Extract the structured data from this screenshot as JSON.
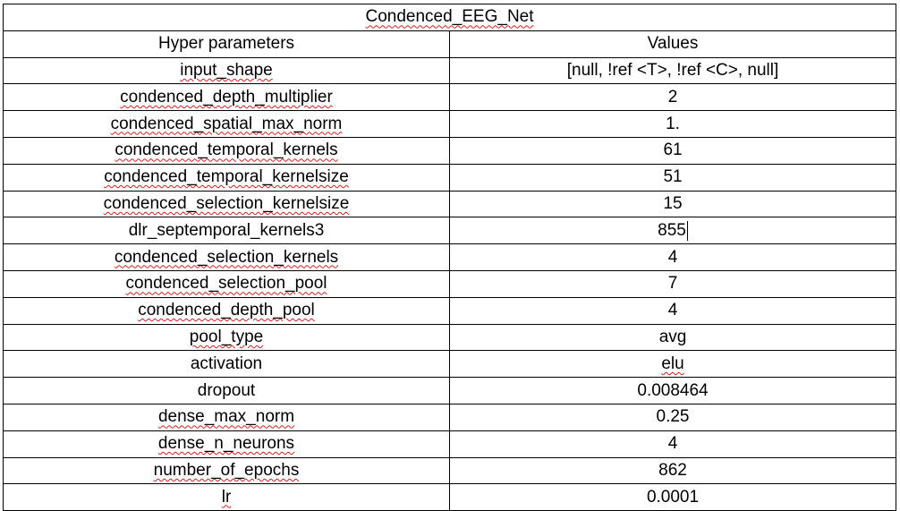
{
  "table": {
    "title": "Condenced_EEG_Net",
    "header": {
      "param": "Hyper parameters",
      "value": "Values"
    },
    "rows": [
      {
        "param": "input_shape",
        "value": "[null, !ref <T>, !ref <C>, null]"
      },
      {
        "param": "condenced_depth_multiplier",
        "value": "2"
      },
      {
        "param": "condenced_spatial_max_norm",
        "value": "1."
      },
      {
        "param": "condenced_temporal_kernels",
        "value": "61"
      },
      {
        "param": "condenced_temporal_kernelsize",
        "value": "51"
      },
      {
        "param": "condenced_selection_kernelsize",
        "value": "15"
      },
      {
        "param": "dlr_septemporal_kernels3",
        "value": "855"
      },
      {
        "param": "condenced_selection_kernels",
        "value": "4"
      },
      {
        "param": "condenced_selection_pool",
        "value": "7"
      },
      {
        "param": "condenced_depth_pool",
        "value": "4"
      },
      {
        "param": "pool_type",
        "value": "avg"
      },
      {
        "param": "activation",
        "value": "elu"
      },
      {
        "param": "dropout",
        "value": "0.008464"
      },
      {
        "param": "dense_max_norm",
        "value": "0.25"
      },
      {
        "param": "dense_n_neurons",
        "value": "4"
      },
      {
        "param": "number_of_epochs",
        "value": "862"
      },
      {
        "param": "lr",
        "value": "0.0001"
      }
    ]
  }
}
